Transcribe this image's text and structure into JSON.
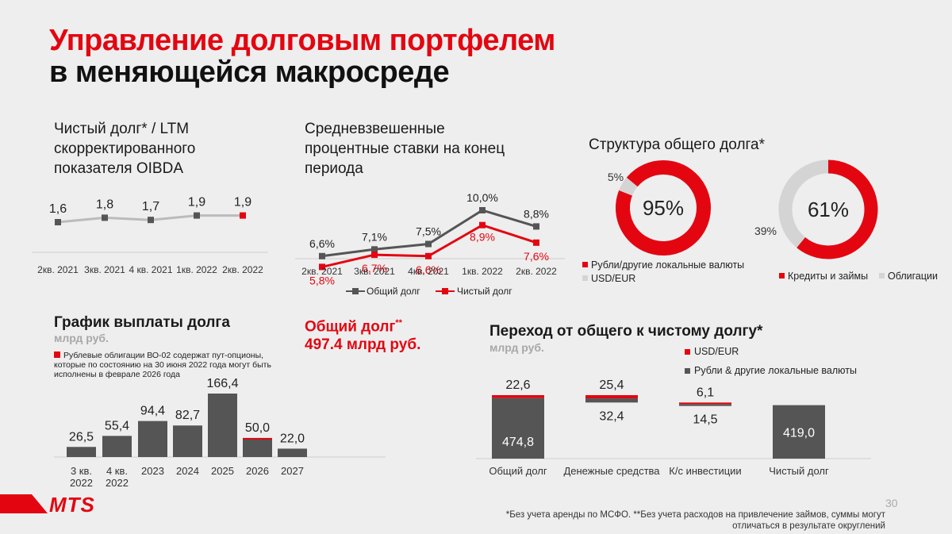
{
  "header": {
    "title_line1": "Управление долговым портфелем",
    "title_line2": "в меняющейся макросреде"
  },
  "colors": {
    "red": "#e30611",
    "dark": "#555555",
    "grey": "#bbbbbb",
    "light": "#d4d4d4"
  },
  "chart_data": [
    {
      "type": "line",
      "title_lines": [
        "Чистый долг* / LTM",
        "скорректированного",
        "показателя OIBDA"
      ],
      "categories": [
        "2кв. 2021",
        "3кв. 2021",
        "4 кв. 2021",
        "1кв. 2022",
        "2кв. 2022"
      ],
      "series": [
        {
          "values": [
            1.6,
            1.8,
            1.7,
            1.9,
            1.9
          ]
        }
      ],
      "labels": [
        "1,6",
        "1,8",
        "1,7",
        "1,9",
        "1,9"
      ]
    },
    {
      "type": "line",
      "title_lines": [
        "Средневзвешенные",
        "процентные ставки на конец",
        "периода"
      ],
      "categories": [
        "2кв. 2021",
        "3кв. 2021",
        "4кв. 2021",
        "1кв. 2022",
        "2кв. 2022"
      ],
      "series": [
        {
          "name": "Общий долг",
          "values": [
            6.6,
            7.1,
            7.5,
            10.0,
            8.8
          ],
          "labels": [
            "6,6%",
            "7,1%",
            "7,5%",
            "10,0%",
            "8,8%"
          ]
        },
        {
          "name": "Чистый долг",
          "values": [
            5.8,
            6.7,
            6.6,
            8.9,
            7.6
          ],
          "labels": [
            "5,8%",
            "6,7%",
            "6,6%",
            "8,9%",
            "7,6%"
          ]
        }
      ]
    },
    {
      "type": "pie",
      "title": "Структура общего долга*",
      "donut1": {
        "slices": [
          {
            "name": "Рубли/другие локальные валюты",
            "value": 95
          },
          {
            "name": "USD/EUR",
            "value": 5
          }
        ],
        "center_label": "95%",
        "minor_label": "5%"
      },
      "donut2": {
        "slices": [
          {
            "name": "Кредиты и займы",
            "value": 61
          },
          {
            "name": "Облигации",
            "value": 39
          }
        ],
        "center_label": "61%",
        "minor_label": "39%"
      }
    },
    {
      "type": "bar",
      "title": "График выплаты долга",
      "unit": "млрд руб.",
      "note": "Рублевые облигации ВО-02 содержат пут-опционы, которые по состоянию на 30 июня 2022 года могут быть исполнены в феврале 2026 года",
      "categories": [
        [
          "3 кв.",
          "2022"
        ],
        [
          "4 кв.",
          "2022"
        ],
        [
          "2023"
        ],
        [
          "2024"
        ],
        [
          "2025"
        ],
        [
          "2026"
        ],
        [
          "2027"
        ]
      ],
      "values": [
        26.5,
        55.4,
        94.4,
        82.7,
        166.4,
        50.0,
        22.0
      ],
      "labels": [
        "26,5",
        "55,4",
        "94,4",
        "82,7",
        "166,4",
        "50,0",
        "22,0"
      ],
      "put_option_index": 5
    },
    {
      "type": "bar",
      "title": "Переход от общего к чистому долгу*",
      "unit": "млрд руб.",
      "legend": [
        "USD/EUR",
        "Рубли & другие локальные валюты"
      ],
      "categories": [
        "Общий долг",
        "Денежные средства",
        "К/с инвестиции",
        "Чистый долг"
      ],
      "rub": [
        474.8,
        32.4,
        14.5,
        419.0
      ],
      "usd": [
        22.6,
        25.4,
        6.1,
        0
      ],
      "labels_top": [
        "22,6",
        "25,4",
        "6,1",
        ""
      ],
      "labels_rub": [
        "474,8",
        "32,4",
        "14,5",
        "419,0"
      ]
    }
  ],
  "total_debt": {
    "label": "Общий долг",
    "label_sup": "**",
    "value": "497.4 млрд руб."
  },
  "logo": "MTS",
  "page_number": "30",
  "footnote": {
    "line1": "*Без учета аренды по МСФО. **Без учета расходов на привлечение займов, суммы могут",
    "line2": "отличаться в результате округлений"
  }
}
